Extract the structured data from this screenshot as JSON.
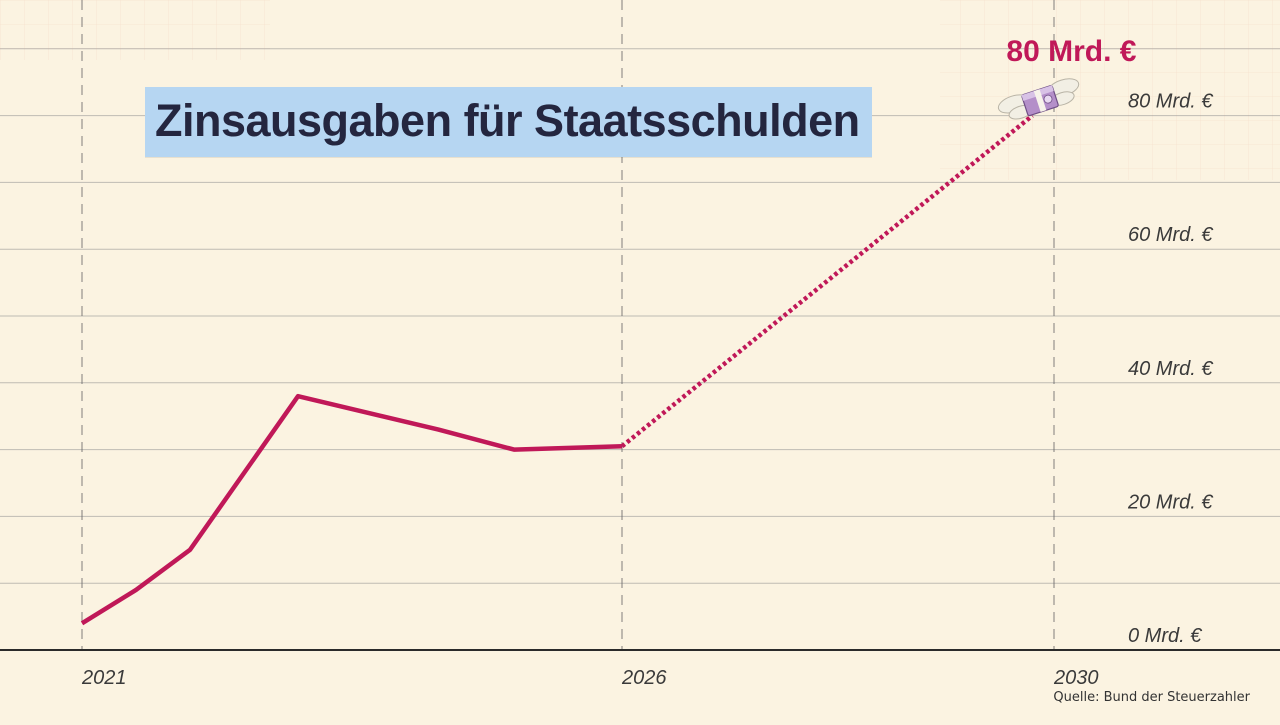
{
  "chart_data": {
    "type": "line",
    "title": "Zinsausgaben für Staatsschulden",
    "source": "Quelle: Bund der Steuerzahler",
    "ylim": [
      0,
      80
    ],
    "xlim": [
      2021,
      2031.5
    ],
    "y_ticks": [
      0,
      20,
      40,
      60,
      80
    ],
    "y_tick_labels": [
      "0 Mrd. €",
      "20 Mrd. €",
      "40 Mrd. €",
      "60 Mrd. €",
      "80 Mrd. €"
    ],
    "x_ticks": [
      2021,
      2026,
      2030
    ],
    "x_tick_labels": [
      "2021",
      "2026",
      "2030"
    ],
    "grid": true,
    "series": [
      {
        "style": "solid",
        "color": "#c01858",
        "points": [
          {
            "x": 2021.0,
            "y": 4
          },
          {
            "x": 2021.5,
            "y": 9
          },
          {
            "x": 2022.0,
            "y": 15
          },
          {
            "x": 2023.0,
            "y": 38
          },
          {
            "x": 2024.3,
            "y": 33
          },
          {
            "x": 2025.0,
            "y": 30
          },
          {
            "x": 2026.0,
            "y": 30.5
          }
        ]
      },
      {
        "style": "dotted",
        "color": "#c01858",
        "points": [
          {
            "x": 2026.0,
            "y": 30.5
          },
          {
            "x": 2029.8,
            "y": 80
          }
        ]
      }
    ],
    "annotation": {
      "text": "80 Mrd. €",
      "x": 2029.8,
      "y": 80,
      "icon": "flying-money-icon"
    }
  }
}
